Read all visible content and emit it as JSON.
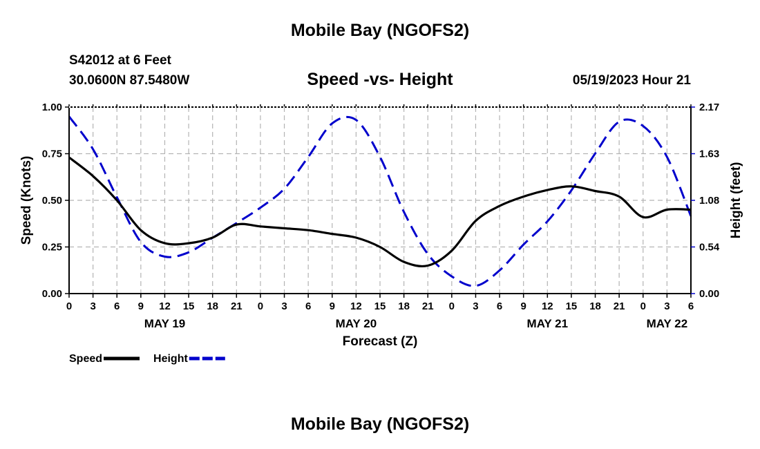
{
  "header": {
    "title": "Mobile Bay (NGOFS2)",
    "station": "S42012 at 6 Feet",
    "coords": "30.0600N  87.5480W",
    "subtitle": "Speed -vs- Height",
    "datetime": "05/19/2023 Hour 21"
  },
  "footer": {
    "title": "Mobile Bay (NGOFS2)"
  },
  "chart_data": {
    "type": "line",
    "xlabel": "Forecast (Z)",
    "ylabel_left": "Speed (Knots)",
    "ylabel_right": "Height (feet)",
    "x_unit": "hours",
    "x_hour_ticks": [
      "0",
      "3",
      "6",
      "9",
      "12",
      "15",
      "18",
      "21",
      "0",
      "3",
      "6",
      "9",
      "12",
      "15",
      "18",
      "21",
      "0",
      "3",
      "6",
      "9",
      "12",
      "15",
      "18",
      "21",
      "0",
      "3",
      "6"
    ],
    "day_labels": [
      {
        "label": "MAY 19",
        "hour": 12
      },
      {
        "label": "MAY 20",
        "hour": 36
      },
      {
        "label": "MAY 21",
        "hour": 60
      },
      {
        "label": "MAY 22",
        "hour": 75
      }
    ],
    "xlim": [
      0,
      78
    ],
    "ylim_left": [
      0,
      1.0
    ],
    "ylim_right": [
      0,
      2.17
    ],
    "left_ticks": [
      "0.00",
      "0.25",
      "0.50",
      "0.75",
      "1.00"
    ],
    "right_ticks": [
      "0.00",
      "0.54",
      "1.08",
      "1.63",
      "2.17"
    ],
    "grid": true,
    "legend_position": "bottom-left",
    "series": [
      {
        "name": "Speed",
        "axis": "left",
        "color": "#000000",
        "style": "solid",
        "x": [
          0,
          3,
          6,
          9,
          12,
          15,
          18,
          21,
          24,
          27,
          30,
          33,
          36,
          39,
          42,
          45,
          48,
          51,
          54,
          57,
          60,
          63,
          66,
          69,
          72,
          75,
          78
        ],
        "y": [
          0.73,
          0.63,
          0.5,
          0.34,
          0.27,
          0.27,
          0.3,
          0.37,
          0.36,
          0.35,
          0.34,
          0.32,
          0.3,
          0.25,
          0.17,
          0.15,
          0.23,
          0.39,
          0.47,
          0.52,
          0.555,
          0.575,
          0.55,
          0.52,
          0.41,
          0.45,
          0.45
        ]
      },
      {
        "name": "Height",
        "axis": "right",
        "color": "#0000cc",
        "style": "dashed",
        "x": [
          0,
          3,
          6,
          9,
          12,
          15,
          18,
          21,
          24,
          27,
          30,
          33,
          36,
          39,
          42,
          45,
          48,
          51,
          54,
          57,
          60,
          63,
          66,
          69,
          72,
          75,
          78
        ],
        "y": [
          2.06,
          1.68,
          1.12,
          0.6,
          0.43,
          0.48,
          0.65,
          0.82,
          1.0,
          1.22,
          1.59,
          1.98,
          2.02,
          1.59,
          0.95,
          0.46,
          0.2,
          0.09,
          0.27,
          0.57,
          0.84,
          1.2,
          1.63,
          2.0,
          1.95,
          1.59,
          0.9
        ]
      }
    ]
  }
}
